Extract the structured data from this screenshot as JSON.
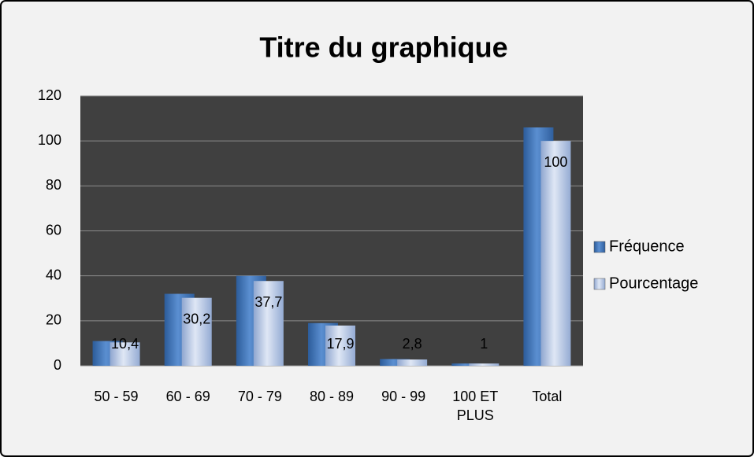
{
  "chart_data": {
    "type": "bar",
    "title": "Titre du graphique",
    "categories": [
      "50 - 59",
      "60 - 69",
      "70 - 79",
      "80 - 89",
      "90 - 99",
      "100 ET PLUS",
      "Total"
    ],
    "series": [
      {
        "name": "Fréquence",
        "color": "#4a7ebf",
        "values": [
          11,
          32,
          40,
          19,
          3,
          1,
          106
        ]
      },
      {
        "name": "Pourcentage",
        "color": "#b4c6e4",
        "values": [
          10.4,
          30.2,
          37.7,
          17.9,
          2.8,
          1,
          100
        ],
        "value_labels": [
          "10,4",
          "30,2",
          "37,7",
          "17,9",
          "2,8",
          "1",
          "100"
        ]
      }
    ],
    "ylim": [
      0,
      120
    ],
    "yticks": [
      0,
      20,
      40,
      60,
      80,
      100,
      120
    ],
    "grid": true,
    "legend": "right"
  }
}
